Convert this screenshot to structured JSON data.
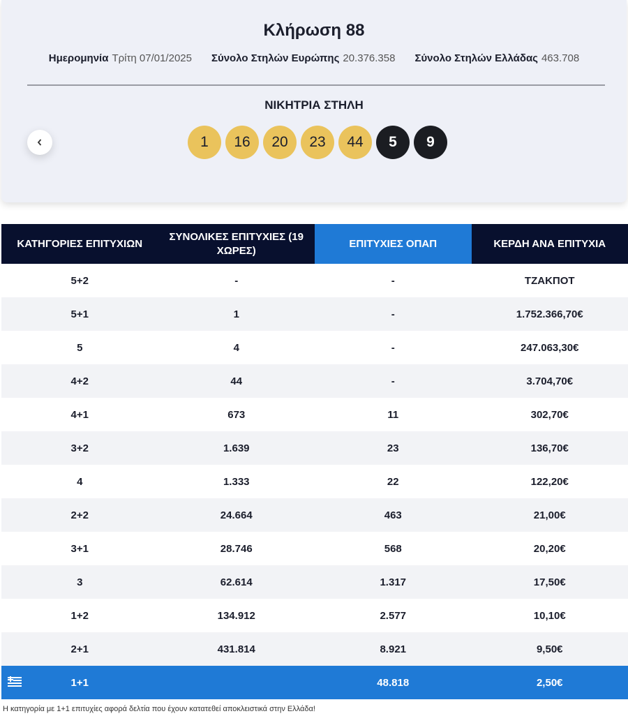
{
  "header": {
    "title": "Κλήρωση 88",
    "info": [
      {
        "label": "Ημερομηνία",
        "value": "Τρίτη 07/01/2025"
      },
      {
        "label": "Σύνολο Στηλών Ευρώπης",
        "value": "20.376.358"
      },
      {
        "label": "Σύνολο Στηλών Ελλάδας",
        "value": "463.708"
      }
    ]
  },
  "draw": {
    "title": "ΝΙΚΗΤΡΙΑ ΣΤΗΛΗ",
    "numbers": [
      "1",
      "16",
      "20",
      "23",
      "44"
    ],
    "stars": [
      "5",
      "9"
    ]
  },
  "table": {
    "columns": [
      "ΚΑΤΗΓΟΡΙΕΣ ΕΠΙΤΥΧΙΩΝ",
      "ΣΥΝΟΛΙΚΕΣ ΕΠΙΤΥΧΙΕΣ (19 ΧΩΡΕΣ)",
      "ΕΠΙΤΥΧΙΕΣ ΟΠΑΠ",
      "ΚΕΡΔΗ ΑΝΑ ΕΠΙΤΥΧΙΑ"
    ],
    "rows": [
      [
        "5+2",
        "-",
        "-",
        "ΤΖΑΚΠΟΤ"
      ],
      [
        "5+1",
        "1",
        "-",
        "1.752.366,70€"
      ],
      [
        "5",
        "4",
        "-",
        "247.063,30€"
      ],
      [
        "4+2",
        "44",
        "-",
        "3.704,70€"
      ],
      [
        "4+1",
        "673",
        "11",
        "302,70€"
      ],
      [
        "3+2",
        "1.639",
        "23",
        "136,70€"
      ],
      [
        "4",
        "1.333",
        "22",
        "122,20€"
      ],
      [
        "2+2",
        "24.664",
        "463",
        "21,00€"
      ],
      [
        "3+1",
        "28.746",
        "568",
        "20,20€"
      ],
      [
        "3",
        "62.614",
        "1.317",
        "17,50€"
      ],
      [
        "1+2",
        "134.912",
        "2.577",
        "10,10€"
      ],
      [
        "2+1",
        "431.814",
        "8.921",
        "9,50€"
      ],
      [
        "1+1",
        null,
        "48.818",
        "2,50€"
      ]
    ],
    "footnote": "Η κατηγορία με 1+1 επιτυχίες αφορά δελτία που έχουν κατατεθεί αποκλειστικά στην Ελλάδα!"
  }
}
